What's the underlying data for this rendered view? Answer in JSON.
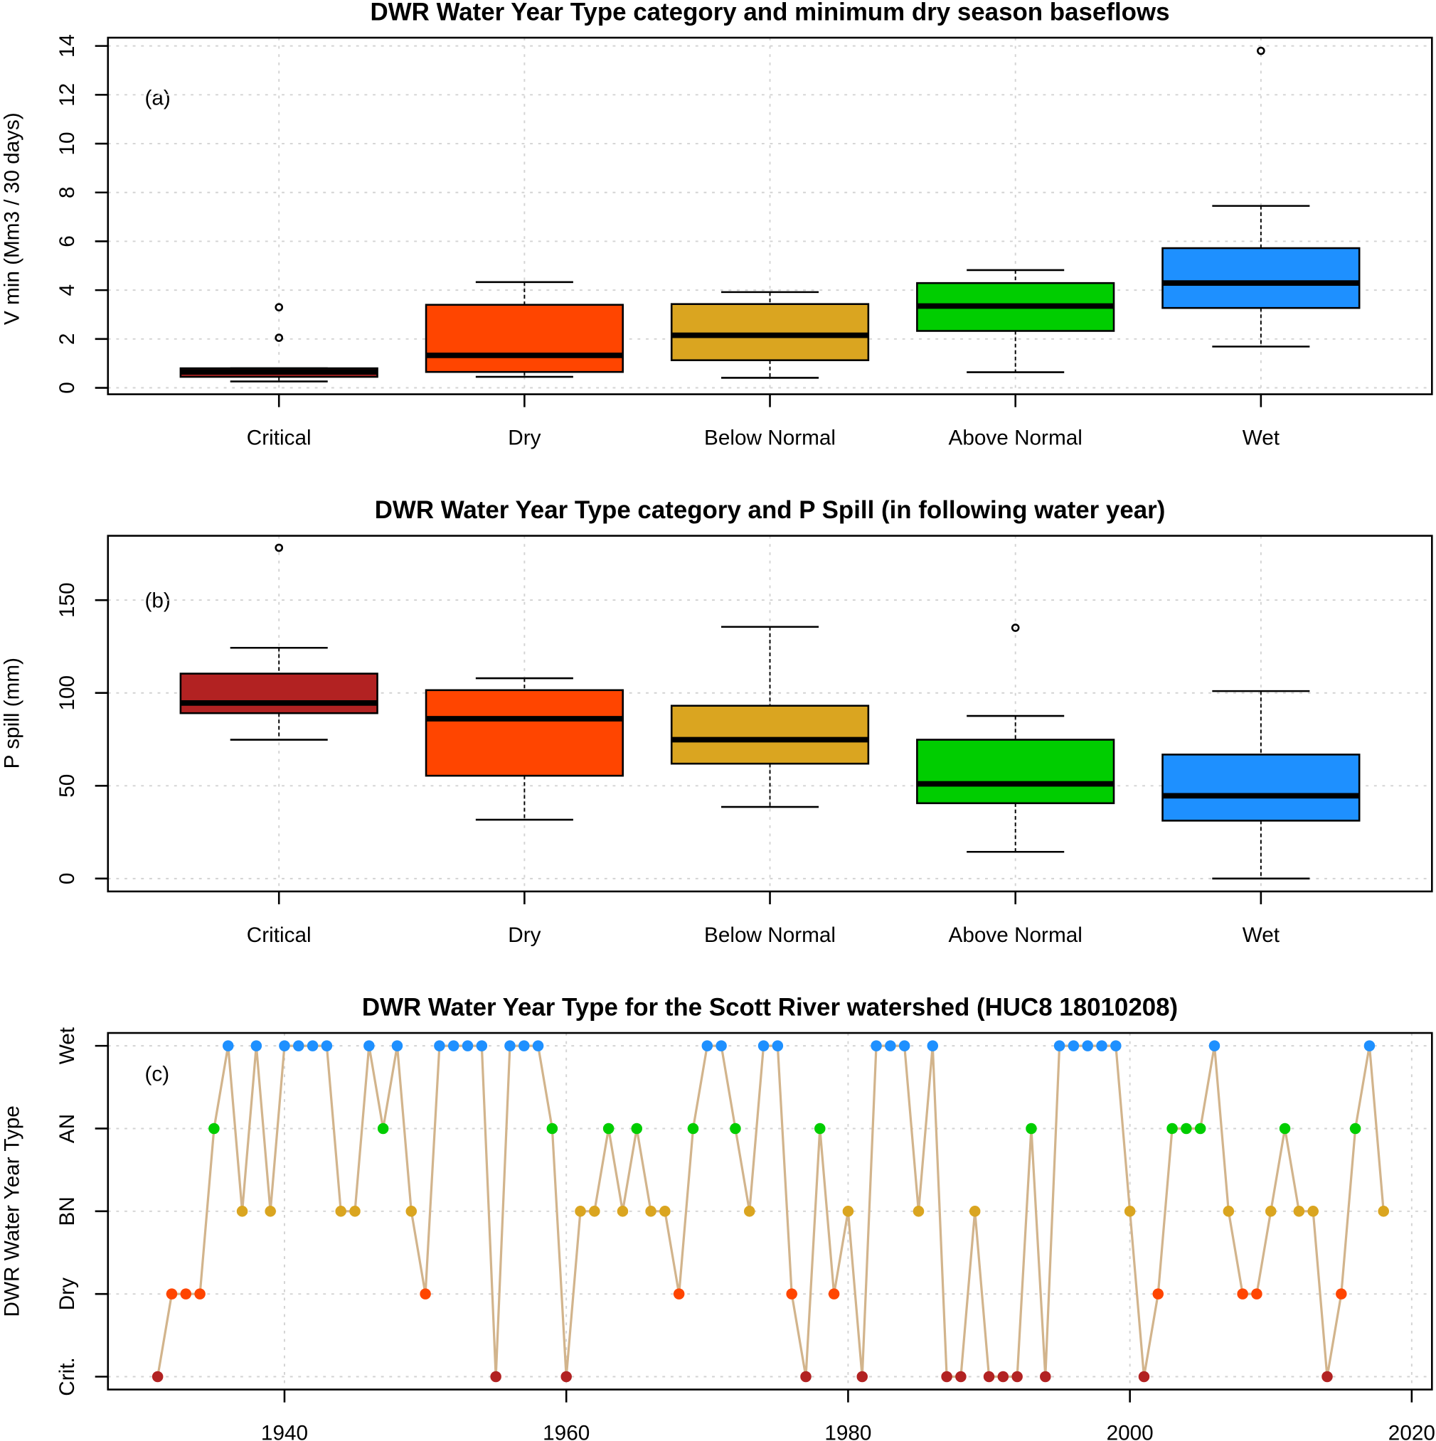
{
  "chart_data": [
    {
      "type": "box",
      "title": "DWR Water Year Type category and minimum dry season baseflows",
      "panel_label": "(a)",
      "ylabel": "V min (Mm3 / 30 days)",
      "ylim": [
        0,
        14
      ],
      "yticks": [
        0,
        2,
        4,
        6,
        8,
        10,
        12,
        14
      ],
      "grid": true,
      "categories": [
        "Critical",
        "Dry",
        "Below Normal",
        "Above Normal",
        "Wet"
      ],
      "colors": [
        "#B22222",
        "#FF4500",
        "#DAA520",
        "#00CD00",
        "#1E90FF"
      ],
      "boxes": [
        {
          "low": 0.26,
          "q1": 0.45,
          "median": 0.65,
          "q3": 0.8,
          "high": 0.8,
          "outliers": [
            2.05,
            3.3
          ]
        },
        {
          "low": 0.45,
          "q1": 0.65,
          "median": 1.33,
          "q3": 3.4,
          "high": 4.33,
          "outliers": []
        },
        {
          "low": 0.41,
          "q1": 1.13,
          "median": 2.15,
          "q3": 3.43,
          "high": 3.92,
          "outliers": []
        },
        {
          "low": 0.64,
          "q1": 2.33,
          "median": 3.35,
          "q3": 4.29,
          "high": 4.82,
          "outliers": []
        },
        {
          "low": 1.69,
          "q1": 3.27,
          "median": 4.29,
          "q3": 5.72,
          "high": 7.45,
          "outliers": [
            13.8
          ]
        }
      ]
    },
    {
      "type": "box",
      "title": "DWR Water Year Type category and P Spill (in following water year)",
      "panel_label": "(b)",
      "ylabel": "P spill (mm)",
      "ylim": [
        -7,
        185
      ],
      "yticks": [
        0,
        50,
        100,
        150
      ],
      "grid": true,
      "categories": [
        "Critical",
        "Dry",
        "Below Normal",
        "Above Normal",
        "Wet"
      ],
      "colors": [
        "#B22222",
        "#FF4500",
        "#DAA520",
        "#00CD00",
        "#1E90FF"
      ],
      "boxes": [
        {
          "low": 74.8,
          "q1": 89.1,
          "median": 94.6,
          "q3": 110.4,
          "high": 124.3,
          "outliers": [
            178.2
          ]
        },
        {
          "low": 31.7,
          "q1": 55.4,
          "median": 86.1,
          "q3": 101.5,
          "high": 107.9,
          "outliers": []
        },
        {
          "low": 38.6,
          "q1": 61.9,
          "median": 74.8,
          "q3": 93.1,
          "high": 135.6,
          "outliers": []
        },
        {
          "low": 14.4,
          "q1": 40.6,
          "median": 51.0,
          "q3": 74.8,
          "high": 87.6,
          "outliers": [
            135.1
          ]
        },
        {
          "low": 0,
          "q1": 31.2,
          "median": 44.6,
          "q3": 66.8,
          "high": 101.0,
          "outliers": []
        }
      ]
    },
    {
      "type": "line",
      "title": "DWR Water Year Type for the Scott River watershed (HUC8 18010208)",
      "panel_label": "(c)",
      "ylabel": "DWR Water Year Type",
      "yticks": [
        "Crit.",
        "Dry",
        "BN",
        "AN",
        "Wet"
      ],
      "xticks": [
        1940,
        1960,
        1980,
        2000,
        2020
      ],
      "xlim": [
        1927.5,
        2021.5
      ],
      "grid": true,
      "line_color": "#D2B48C",
      "level_colors": {
        "Crit.": "#B22222",
        "Dry": "#FF4500",
        "BN": "#DAA520",
        "AN": "#00CD00",
        "Wet": "#1E90FF"
      },
      "x_start": 1931,
      "values": [
        "Crit.",
        "Dry",
        "Dry",
        "Dry",
        "AN",
        "Wet",
        "BN",
        "Wet",
        "BN",
        "Wet",
        "Wet",
        "Wet",
        "Wet",
        "BN",
        "BN",
        "Wet",
        "AN",
        "Wet",
        "BN",
        "Dry",
        "Wet",
        "Wet",
        "Wet",
        "Wet",
        "Crit.",
        "Wet",
        "Wet",
        "Wet",
        "AN",
        "Crit.",
        "BN",
        "BN",
        "AN",
        "BN",
        "AN",
        "BN",
        "BN",
        "Dry",
        "AN",
        "Wet",
        "Wet",
        "AN",
        "BN",
        "Wet",
        "Wet",
        "Dry",
        "Crit.",
        "AN",
        "Dry",
        "BN",
        "Crit.",
        "Wet",
        "Wet",
        "Wet",
        "BN",
        "Wet",
        "Crit.",
        "Crit.",
        "BN",
        "Crit.",
        "Crit.",
        "Crit.",
        "AN",
        "Crit.",
        "Wet",
        "Wet",
        "Wet",
        "Wet",
        "Wet",
        "BN",
        "Crit.",
        "Dry",
        "AN",
        "AN",
        "AN",
        "Wet",
        "BN",
        "Dry",
        "Dry",
        "BN",
        "AN",
        "BN",
        "BN",
        "Crit.",
        "Dry",
        "AN",
        "Wet",
        "BN"
      ]
    }
  ]
}
